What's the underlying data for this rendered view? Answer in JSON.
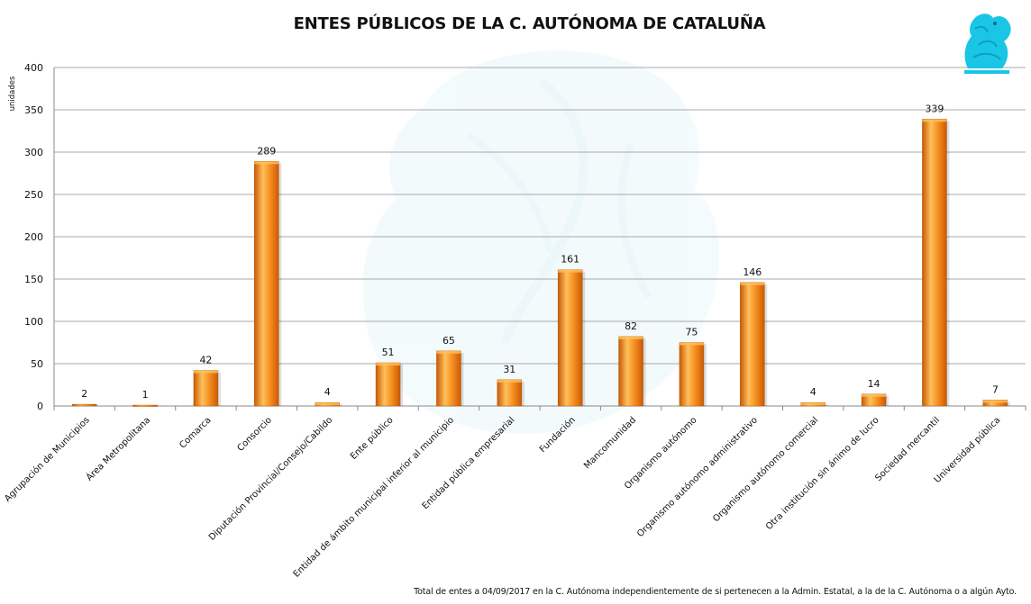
{
  "chart_data": {
    "type": "bar",
    "title": "ENTES PÚBLICOS DE LA C. AUTÓNOMA DE CATALUÑA",
    "ylabel": "unidades",
    "xlabel": "",
    "ylim": [
      0,
      400
    ],
    "yticks": [
      0,
      50,
      100,
      150,
      200,
      250,
      300,
      350,
      400
    ],
    "grid": true,
    "legend": "none",
    "categories": [
      "Agrupación de Municipios",
      "Área Metropolitana",
      "Comarca",
      "Consorcio",
      "Diputación Provincial/Consejo/Cabildo",
      "Ente público",
      "Entidad de ámbito municipal inferior al municipio",
      "Entidad pública empresarial",
      "Fundación",
      "Mancomunidad",
      "Organismo autónomo",
      "Organismo autónomo administrativo",
      "Organismo autónomo comercial",
      "Otra institución sin ánimo de lucro",
      "Sociedad mercantil",
      "Universidad pública"
    ],
    "values": [
      2,
      1,
      42,
      289,
      4,
      51,
      65,
      31,
      161,
      82,
      75,
      146,
      4,
      14,
      339,
      7
    ],
    "bar_color": "#F28A1A",
    "footnote": "Total de entes a 04/09/2017 en la C. Autónoma independientemente de si pertenecen a la Admin. Estatal, a la de la C. Autónoma o a algún Ayto."
  },
  "colors": {
    "bar_light": "#FFC05A",
    "bar_mid": "#F58E1F",
    "bar_dark": "#C95A06",
    "logo": "#19C6E6",
    "watermark": "#EAF7FB",
    "grid": "#A8A8A8"
  },
  "icons": {
    "logo": "griffin-logo-icon",
    "watermark": "eagle-watermark-icon"
  }
}
